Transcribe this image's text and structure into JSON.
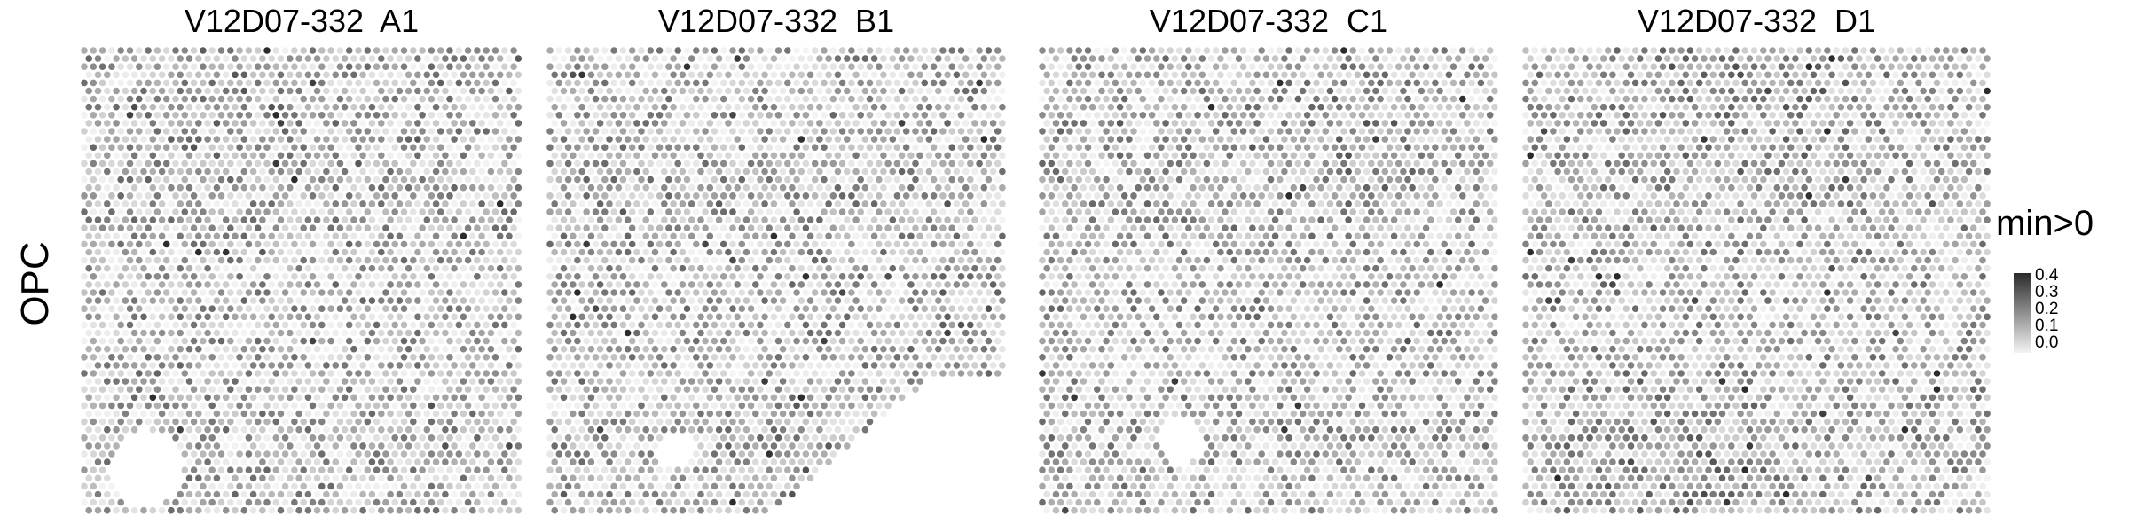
{
  "chart_data": {
    "type": "heatmap",
    "row_label": "OPC",
    "panels": [
      {
        "title": "V12D07-332  A1",
        "sparse_regions": [
          {
            "cx": 0.15,
            "cy": 0.9,
            "r": 0.08
          }
        ],
        "dense_regions": [
          {
            "cx": 0.3,
            "cy": 0.1,
            "r": 0.25
          }
        ]
      },
      {
        "title": "V12D07-332  B1",
        "sparse_regions": [
          {
            "cx": 0.28,
            "cy": 0.86,
            "r": 0.04
          }
        ],
        "dense_regions": [
          {
            "cx": 0.55,
            "cy": 0.95,
            "r": 0.25
          },
          {
            "cx": 0.9,
            "cy": 0.6,
            "r": 0.15
          }
        ]
      },
      {
        "title": "V12D07-332  C1",
        "sparse_regions": [
          {
            "cx": 0.31,
            "cy": 0.84,
            "r": 0.05
          }
        ],
        "dense_regions": [
          {
            "cx": 0.7,
            "cy": 0.2,
            "r": 0.2
          }
        ]
      },
      {
        "title": "V12D07-332  D1",
        "sparse_regions": [],
        "dense_regions": [
          {
            "cx": 0.5,
            "cy": 0.05,
            "r": 0.35
          },
          {
            "cx": 0.3,
            "cy": 0.92,
            "r": 0.3
          }
        ]
      }
    ],
    "legend": {
      "title": "min>0",
      "ticks": [
        "0.4",
        "0.3",
        "0.2",
        "0.1",
        "0.0"
      ],
      "range": [
        0.0,
        0.45
      ]
    },
    "colors": {
      "low": "#f4f4f4",
      "high": "#2b2b2b"
    }
  }
}
